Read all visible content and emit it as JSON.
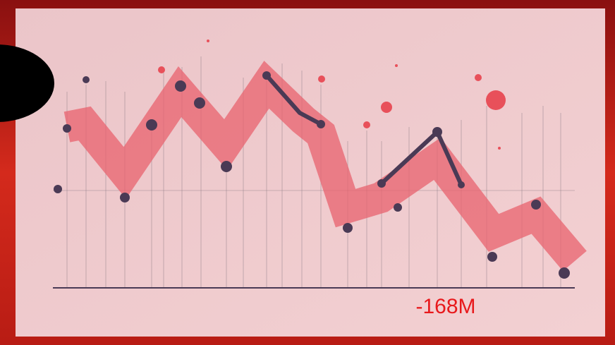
{
  "annotation": "-168M"
}
